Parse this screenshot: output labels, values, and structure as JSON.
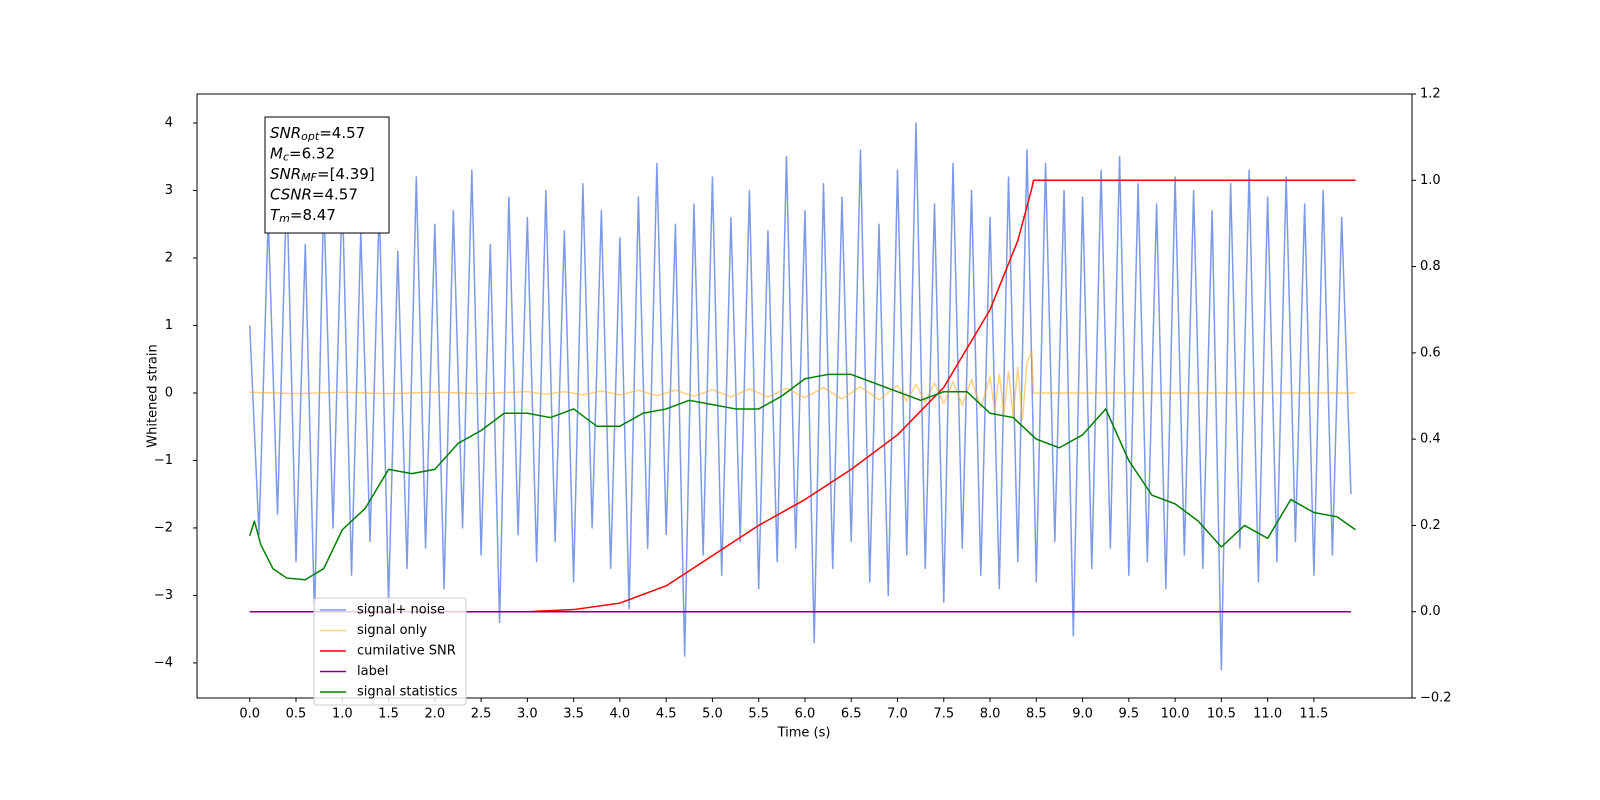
{
  "chart_data": {
    "type": "line",
    "xlabel": "Time (s)",
    "ylabel": "Whitened strain",
    "xlim": [
      -0.57,
      12.56
    ],
    "ylim": [
      -4.52,
      4.43
    ],
    "y2lim": [
      -0.2,
      1.2
    ],
    "xticks": [
      {
        "value": 0,
        "label": "0.0"
      },
      {
        "value": 0.5,
        "label": "0.5"
      },
      {
        "value": 1,
        "label": "1.0"
      },
      {
        "value": 1.5,
        "label": "1.5"
      },
      {
        "value": 2,
        "label": "2.0"
      },
      {
        "value": 2.5,
        "label": "2.5"
      },
      {
        "value": 3,
        "label": "3.0"
      },
      {
        "value": 3.5,
        "label": "3.5"
      },
      {
        "value": 4,
        "label": "4.0"
      },
      {
        "value": 4.5,
        "label": "4.5"
      },
      {
        "value": 5,
        "label": "5.0"
      },
      {
        "value": 5.5,
        "label": "5.5"
      },
      {
        "value": 6,
        "label": "6.0"
      },
      {
        "value": 6.5,
        "label": "6.5"
      },
      {
        "value": 7,
        "label": "7.0"
      },
      {
        "value": 7.5,
        "label": "7.5"
      },
      {
        "value": 8,
        "label": "8.0"
      },
      {
        "value": 8.5,
        "label": "8.5"
      },
      {
        "value": 9,
        "label": "9.0"
      },
      {
        "value": 9.5,
        "label": "9.5"
      },
      {
        "value": 10,
        "label": "10.0"
      },
      {
        "value": 10.5,
        "label": "10.5"
      },
      {
        "value": 11,
        "label": "11.0"
      },
      {
        "value": 11.5,
        "label": "11.5"
      }
    ],
    "yticks": [
      {
        "value": -4,
        "label": "−4"
      },
      {
        "value": -3,
        "label": "−3"
      },
      {
        "value": -2,
        "label": "−2"
      },
      {
        "value": -1,
        "label": "−1"
      },
      0,
      1,
      2,
      3,
      4
    ],
    "y2ticks": [
      {
        "value": -0.2,
        "label": "−0.2"
      },
      {
        "value": 0,
        "label": "0.0"
      },
      {
        "value": 0.2,
        "label": "0.2"
      },
      {
        "value": 0.4,
        "label": "0.4"
      },
      {
        "value": 0.6,
        "label": "0.6"
      },
      {
        "value": 0.8,
        "label": "0.8"
      },
      {
        "value": 1,
        "label": "1.0"
      },
      1.2
    ],
    "annotation": [
      {
        "main": "SNR",
        "sub": "opt",
        "value": "=4.57"
      },
      {
        "main": "M",
        "sub": "c",
        "value": "=6.32"
      },
      {
        "main": "SNR",
        "sub": "MF",
        "value": "=[4.39]"
      },
      {
        "main": "CSNR",
        "sub": "",
        "value": "=4.57"
      },
      {
        "main": "T",
        "sub": "m",
        "value": "=8.47"
      }
    ],
    "legend": "lower left",
    "series": [
      {
        "name": "signal+ noise",
        "color": "#6f8fe6",
        "alpha": 0.9,
        "x": [
          0.0,
          0.1,
          0.2,
          0.3,
          0.4,
          0.5,
          0.6,
          0.7,
          0.8,
          0.9,
          1.0,
          1.1,
          1.2,
          1.3,
          1.4,
          1.5,
          1.6,
          1.7,
          1.8,
          1.9,
          2.0,
          2.1,
          2.2,
          2.3,
          2.4,
          2.5,
          2.6,
          2.7,
          2.8,
          2.9,
          3.0,
          3.1,
          3.2,
          3.3,
          3.4,
          3.5,
          3.6,
          3.7,
          3.8,
          3.9,
          4.0,
          4.1,
          4.2,
          4.3,
          4.4,
          4.5,
          4.6,
          4.7,
          4.8,
          4.9,
          5.0,
          5.1,
          5.2,
          5.3,
          5.4,
          5.5,
          5.6,
          5.7,
          5.8,
          5.9,
          6.0,
          6.1,
          6.2,
          6.3,
          6.4,
          6.5,
          6.6,
          6.7,
          6.8,
          6.9,
          7.0,
          7.1,
          7.2,
          7.3,
          7.4,
          7.5,
          7.6,
          7.7,
          7.8,
          7.9,
          8.0,
          8.1,
          8.2,
          8.3,
          8.4,
          8.5,
          8.6,
          8.7,
          8.8,
          8.9,
          9.0,
          9.1,
          9.2,
          9.3,
          9.4,
          9.5,
          9.6,
          9.7,
          9.8,
          9.9,
          10.0,
          10.1,
          10.2,
          10.3,
          10.4,
          10.5,
          10.6,
          10.7,
          10.8,
          10.9,
          11.0,
          11.1,
          11.2,
          11.3,
          11.4,
          11.5,
          11.6,
          11.7,
          11.8,
          11.9
        ],
        "values": [
          1.0,
          -2.1,
          2.6,
          -1.8,
          3.1,
          -2.5,
          2.2,
          -3.3,
          2.9,
          -2.0,
          3.0,
          -2.7,
          2.4,
          -2.2,
          2.8,
          -3.1,
          2.1,
          -2.6,
          3.2,
          -2.3,
          2.5,
          -2.9,
          2.7,
          -2.0,
          3.3,
          -2.4,
          2.2,
          -3.4,
          2.9,
          -2.1,
          2.6,
          -2.5,
          3.0,
          -2.2,
          2.4,
          -2.8,
          3.1,
          -2.0,
          2.7,
          -2.6,
          2.3,
          -3.2,
          2.9,
          -2.3,
          3.4,
          -2.1,
          2.5,
          -3.9,
          2.8,
          -2.4,
          3.2,
          -2.7,
          2.6,
          -2.2,
          3.0,
          -2.9,
          2.4,
          -2.5,
          3.5,
          -2.3,
          2.7,
          -3.7,
          3.1,
          -2.6,
          2.9,
          -2.2,
          3.6,
          -2.8,
          2.5,
          -3.0,
          3.3,
          -2.4,
          4.0,
          -2.6,
          2.8,
          -3.1,
          3.4,
          -2.3,
          3.0,
          -2.7,
          2.6,
          -2.9,
          3.2,
          -2.5,
          3.6,
          -2.8,
          3.4,
          -2.2,
          3.0,
          -3.6,
          2.9,
          -2.6,
          3.3,
          -2.3,
          3.5,
          -2.7,
          3.1,
          -2.5,
          2.8,
          -2.9,
          3.2,
          -2.4,
          3.0,
          -2.6,
          2.7,
          -4.1,
          3.1,
          -2.3,
          3.3,
          -2.8,
          2.9,
          -2.5,
          3.2,
          -2.2,
          2.8,
          -2.7,
          3.0,
          -2.4,
          2.6,
          -1.5
        ]
      },
      {
        "name": "signal only",
        "color": "#ffa500",
        "alpha": 0.5,
        "x": [
          0.0,
          0.5,
          1.0,
          1.5,
          2.0,
          2.5,
          3.0,
          3.2,
          3.4,
          3.6,
          3.8,
          4.0,
          4.2,
          4.4,
          4.6,
          4.8,
          5.0,
          5.2,
          5.4,
          5.6,
          5.8,
          6.0,
          6.2,
          6.4,
          6.6,
          6.8,
          7.0,
          7.1,
          7.2,
          7.3,
          7.4,
          7.5,
          7.6,
          7.7,
          7.8,
          7.9,
          8.0,
          8.05,
          8.1,
          8.15,
          8.2,
          8.25,
          8.3,
          8.35,
          8.4,
          8.45,
          8.47,
          8.6,
          10.0,
          11.95
        ],
        "values": [
          0.01,
          -0.01,
          0.01,
          -0.01,
          0.01,
          -0.01,
          0.02,
          -0.02,
          0.02,
          -0.03,
          0.03,
          -0.03,
          0.04,
          -0.04,
          0.04,
          -0.05,
          0.05,
          -0.06,
          0.06,
          -0.06,
          0.07,
          -0.07,
          0.08,
          -0.09,
          0.09,
          -0.1,
          0.11,
          -0.12,
          0.13,
          -0.14,
          0.15,
          -0.16,
          0.17,
          -0.18,
          0.2,
          -0.22,
          0.24,
          -0.26,
          0.28,
          -0.3,
          0.32,
          -0.35,
          0.38,
          -0.4,
          0.45,
          0.62,
          0,
          0,
          0,
          0
        ]
      },
      {
        "name": "cumilative SNR",
        "color": "#ff0000",
        "axis": "y2",
        "x": [
          0.0,
          3.0,
          3.5,
          4.0,
          4.5,
          5.0,
          5.5,
          6.0,
          6.5,
          7.0,
          7.5,
          8.0,
          8.3,
          8.45,
          8.47,
          11.95
        ],
        "values": [
          0,
          0,
          0.005,
          0.02,
          0.06,
          0.13,
          0.2,
          0.26,
          0.33,
          0.41,
          0.52,
          0.7,
          0.86,
          0.98,
          1.0,
          1.0
        ]
      },
      {
        "name": "label",
        "color": "#800080",
        "axis": "y2",
        "x": [
          0.0,
          11.9
        ],
        "values": [
          0,
          0
        ]
      },
      {
        "name": "signal statistics",
        "color": "#008000",
        "axis": "y2",
        "x": [
          0.0,
          0.05,
          0.12,
          0.25,
          0.4,
          0.6,
          0.8,
          1.0,
          1.25,
          1.5,
          1.75,
          2.0,
          2.25,
          2.5,
          2.75,
          3.0,
          3.25,
          3.5,
          3.75,
          4.0,
          4.25,
          4.5,
          4.75,
          5.0,
          5.25,
          5.5,
          5.75,
          6.0,
          6.25,
          6.5,
          6.75,
          7.0,
          7.25,
          7.5,
          7.75,
          8.0,
          8.25,
          8.5,
          8.75,
          9.0,
          9.25,
          9.5,
          9.75,
          10.0,
          10.25,
          10.5,
          10.75,
          11.0,
          11.25,
          11.5,
          11.75,
          11.95
        ],
        "values": [
          0.176,
          0.21,
          0.155,
          0.1,
          0.078,
          0.074,
          0.1,
          0.19,
          0.24,
          0.33,
          0.32,
          0.33,
          0.39,
          0.42,
          0.46,
          0.46,
          0.45,
          0.47,
          0.43,
          0.43,
          0.46,
          0.47,
          0.49,
          0.48,
          0.47,
          0.47,
          0.5,
          0.54,
          0.55,
          0.55,
          0.53,
          0.51,
          0.49,
          0.51,
          0.51,
          0.46,
          0.45,
          0.4,
          0.38,
          0.41,
          0.47,
          0.35,
          0.27,
          0.25,
          0.21,
          0.15,
          0.2,
          0.17,
          0.26,
          0.23,
          0.22,
          0.19
        ]
      }
    ]
  }
}
